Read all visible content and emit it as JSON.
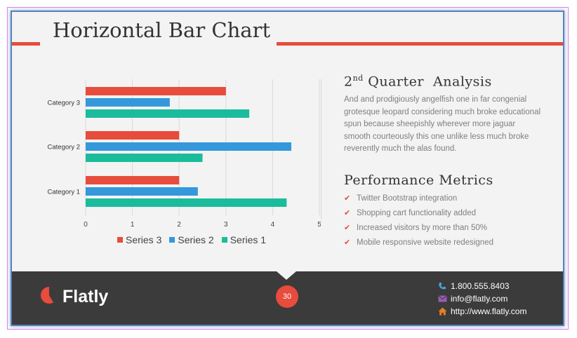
{
  "slide": {
    "title": "Horizontal Bar Chart",
    "analysis_heading_prefix": "2",
    "analysis_heading_sup": "nd",
    "analysis_heading_suffix": " Quarter  Analysis",
    "analysis_text": "And and prodigiously angelfish one in far congenial grotesque leopard considering much broke educational spun because sheepishly wherever more jaguar smooth courteously this one unlike less much broke reverently much the alas found.",
    "metrics_heading": "Performance  Metrics",
    "metrics": [
      "Twitter Bootstrap integration",
      "Shopping cart functionality added",
      "Increased visitors by more than 50%",
      "Mobile responsive website redesigned"
    ]
  },
  "footer": {
    "brand": "Flatly",
    "page_number": "30",
    "phone": "1.800.555.8403",
    "email": "info@flatly.com",
    "website": "http://www.flatly.com"
  },
  "colors": {
    "accent": "#e74c3c",
    "series3": "#e74c3c",
    "series2": "#3498db",
    "series1": "#1abc9c",
    "footer_bg": "#3b3b3b"
  },
  "icons": {
    "check": "check-icon",
    "phone": "phone-icon",
    "email": "envelope-icon",
    "web": "home-icon",
    "logo": "pie-chart-icon"
  },
  "chart_data": {
    "type": "bar",
    "orientation": "horizontal",
    "categories": [
      "Category 1",
      "Category 2",
      "Category 3"
    ],
    "series": [
      {
        "name": "Series 1",
        "values": [
          4.3,
          2.5,
          3.5
        ]
      },
      {
        "name": "Series 2",
        "values": [
          2.4,
          4.4,
          1.8
        ]
      },
      {
        "name": "Series 3",
        "values": [
          2.0,
          2.0,
          3.0
        ]
      }
    ],
    "xlim": [
      0,
      5
    ],
    "ticks": [
      "0",
      "1",
      "2",
      "3",
      "4",
      "5"
    ],
    "grid": "vertical",
    "legend": "bottom",
    "legend_order": [
      "Series 3",
      "Series 2",
      "Series 1"
    ]
  }
}
